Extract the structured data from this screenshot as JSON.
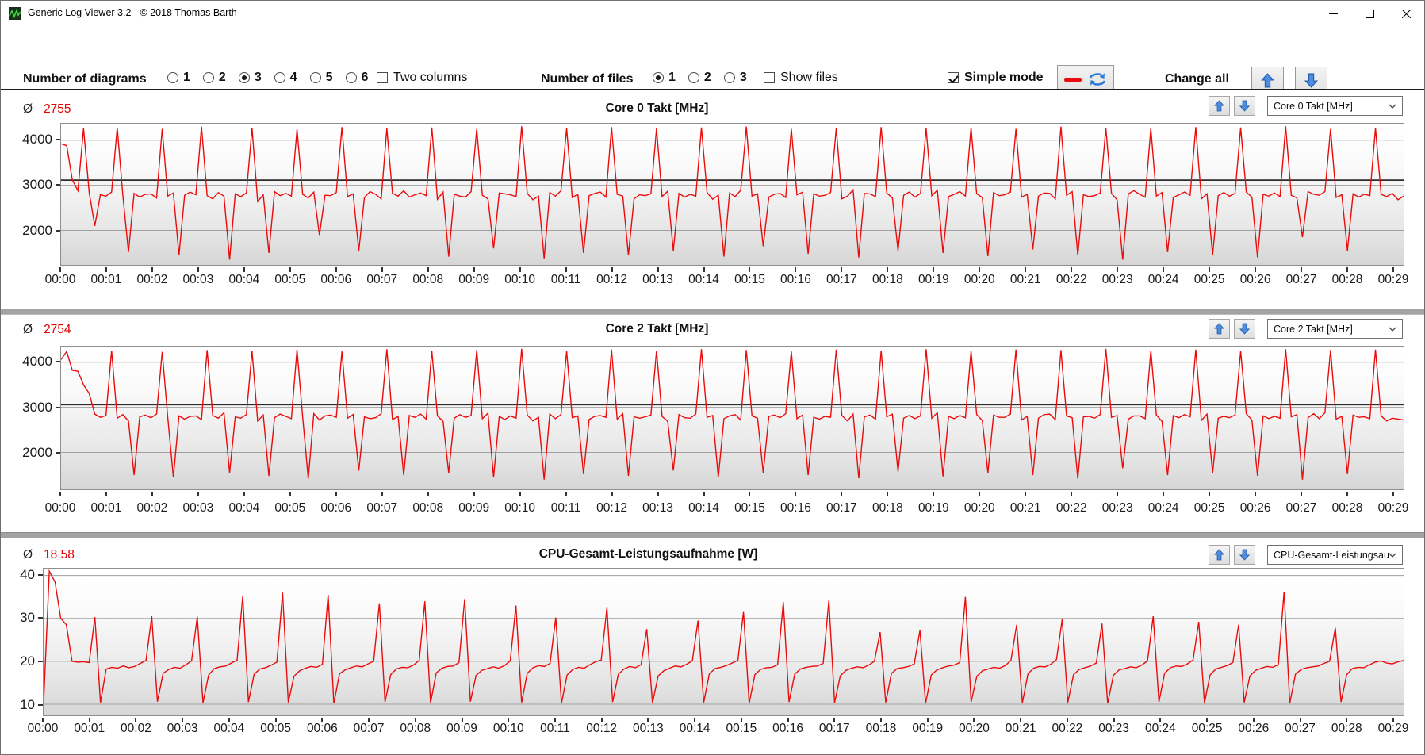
{
  "window_title": "Generic Log Viewer 3.2 - © 2018 Thomas Barth",
  "toolbar": {
    "diagrams_label": "Number of diagrams",
    "diagram_options": [
      "1",
      "2",
      "3",
      "4",
      "5",
      "6"
    ],
    "diagram_selected": "3",
    "two_columns_label": "Two columns",
    "two_columns_checked": false,
    "files_label": "Number of files",
    "file_options": [
      "1",
      "2",
      "3"
    ],
    "file_selected": "1",
    "show_files_label": "Show files",
    "show_files_checked": false,
    "simple_mode_label": "Simple mode",
    "simple_mode_checked": true,
    "change_all_label": "Change all"
  },
  "colors": {
    "series_red": "#ea0b0b",
    "avg_red": "#e50000",
    "arrow_blue": "#4d8ce0",
    "grid_gray": "#9f9f9f"
  },
  "chart_data": [
    {
      "type": "line",
      "title": "Core 0 Takt [MHz]",
      "avg_symbol": "Ø",
      "avg": "2755",
      "dropdown": "Core 0 Takt [MHz]",
      "line_color": "#ea0b0b",
      "ylim": [
        1235,
        4365
      ],
      "y_ticks": [
        {
          "v": 4000,
          "label": "4000"
        },
        {
          "v": 3000,
          "label": "3000"
        },
        {
          "v": 2000,
          "label": "2000"
        }
      ],
      "marker_line": 3115,
      "x_ticks": [
        "00:00",
        "00:01",
        "00:02",
        "00:03",
        "00:04",
        "00:05",
        "00:06",
        "00:07",
        "00:08",
        "00:09",
        "00:10",
        "00:11",
        "00:12",
        "00:13",
        "00:14",
        "00:15",
        "00:16",
        "00:17",
        "00:18",
        "00:19",
        "00:20",
        "00:21",
        "00:22",
        "00:23",
        "00:24",
        "00:25",
        "00:26",
        "00:27",
        "00:28",
        "00:29"
      ],
      "values": [
        3920,
        3880,
        3120,
        2880,
        4260,
        2840,
        2100,
        2790,
        2760,
        2850,
        4280,
        2780,
        1520,
        2820,
        2740,
        2800,
        2810,
        2720,
        4250,
        2760,
        2830,
        1450,
        2780,
        2850,
        2790,
        4300,
        2770,
        2700,
        2840,
        2760,
        1350,
        2810,
        2750,
        2830,
        4270,
        2640,
        2790,
        1500,
        2860,
        2770,
        2820,
        2760,
        4240,
        2800,
        2720,
        2850,
        1900,
        2780,
        2770,
        2840,
        4290,
        2750,
        2810,
        1550,
        2730,
        2860,
        2800,
        2700,
        4260,
        2820,
        2760,
        2880,
        2740,
        2790,
        2830,
        2770,
        4280,
        2690,
        2850,
        1420,
        2800,
        2760,
        2740,
        2860,
        4250,
        2780,
        2700,
        1600,
        2830,
        2810,
        2790,
        2750,
        4310,
        2820,
        2680,
        2760,
        1380,
        2840,
        2760,
        2880,
        4270,
        2730,
        2800,
        1500,
        2770,
        2820,
        2850,
        2740,
        4290,
        2800,
        2760,
        1450,
        2700,
        2790,
        2770,
        2810,
        4260,
        2750,
        2870,
        1550,
        2820,
        2740,
        2800,
        2760,
        4280,
        2840,
        2690,
        2780,
        1420,
        2830,
        2750,
        2890,
        4300,
        2760,
        2810,
        1650,
        2740,
        2800,
        2820,
        2730,
        4250,
        2790,
        2850,
        1480,
        2810,
        2760,
        2780,
        2840,
        4270,
        2700,
        2760,
        2900,
        1400,
        2820,
        2810,
        2750,
        4290,
        2830,
        2720,
        1550,
        2780,
        2850,
        2740,
        2820,
        4260,
        2770,
        2890,
        1500,
        2750,
        2800,
        2860,
        2760,
        4280,
        2810,
        2730,
        1430,
        2840,
        2770,
        2790,
        2850,
        4250,
        2740,
        2800,
        1580,
        2760,
        2830,
        2820,
        2700,
        4300,
        2780,
        2860,
        1450,
        2790,
        2750,
        2770,
        2830,
        4270,
        2820,
        2680,
        1350,
        2810,
        2880,
        2800,
        2740,
        4260,
        2760,
        2840,
        1520,
        2730,
        2790,
        2850,
        2780,
        4290,
        2700,
        2810,
        1460,
        2770,
        2840,
        2760,
        2820,
        4280,
        2850,
        2740,
        1400,
        2800,
        2760,
        2830,
        2750,
        4310,
        2780,
        2720,
        1850,
        2860,
        2800,
        2780,
        2860,
        4250,
        2730,
        2790,
        1550,
        2810,
        2740,
        2800,
        2770,
        4270,
        2800,
        2750,
        2820,
        2680,
        2760
      ]
    },
    {
      "type": "line",
      "title": "Core 2 Takt [MHz]",
      "avg_symbol": "Ø",
      "avg": "2754",
      "dropdown": "Core 2 Takt [MHz]",
      "line_color": "#ea0b0b",
      "ylim": [
        1183,
        4348
      ],
      "y_ticks": [
        {
          "v": 4000,
          "label": "4000"
        },
        {
          "v": 3000,
          "label": "3000"
        },
        {
          "v": 2000,
          "label": "2000"
        }
      ],
      "marker_line": 3060,
      "x_ticks": [
        "00:00",
        "00:01",
        "00:02",
        "00:03",
        "00:04",
        "00:05",
        "00:06",
        "00:07",
        "00:08",
        "00:09",
        "00:10",
        "00:11",
        "00:12",
        "00:13",
        "00:14",
        "00:15",
        "00:16",
        "00:17",
        "00:18",
        "00:19",
        "00:20",
        "00:21",
        "00:22",
        "00:23",
        "00:24",
        "00:25",
        "00:26",
        "00:27",
        "00:28",
        "00:29"
      ],
      "values": [
        4060,
        4240,
        3820,
        3800,
        3500,
        3310,
        2850,
        2780,
        2820,
        4260,
        2760,
        2840,
        2700,
        1500,
        2790,
        2830,
        2770,
        2850,
        4230,
        2780,
        1450,
        2810,
        2740,
        2800,
        2810,
        2730,
        4270,
        2820,
        2760,
        2880,
        1550,
        2790,
        2760,
        2840,
        4250,
        2700,
        2830,
        1480,
        2770,
        2850,
        2800,
        2750,
        4280,
        2790,
        1420,
        2860,
        2720,
        2810,
        2830,
        2780,
        4240,
        2760,
        2840,
        1600,
        2790,
        2750,
        2770,
        2860,
        4290,
        2730,
        2800,
        1500,
        2820,
        2780,
        2850,
        2740,
        4260,
        2810,
        2690,
        1550,
        2760,
        2840,
        2780,
        2820,
        4270,
        2750,
        2870,
        1450,
        2800,
        2730,
        2810,
        2760,
        4300,
        2830,
        2700,
        2780,
        1400,
        2850,
        2750,
        2840,
        4250,
        2770,
        2810,
        1520,
        2730,
        2800,
        2820,
        2780,
        4280,
        2740,
        2860,
        1480,
        2790,
        2760,
        2790,
        2830,
        4260,
        2800,
        2690,
        1600,
        2840,
        2770,
        2760,
        2850,
        4290,
        2780,
        2820,
        1450,
        2750,
        2810,
        2840,
        2720,
        4270,
        2810,
        2760,
        1550,
        2800,
        2830,
        2770,
        2860,
        4240,
        2750,
        2830,
        1500,
        2780,
        2740,
        2800,
        2780,
        4280,
        2820,
        2700,
        2850,
        1430,
        2790,
        2830,
        2740,
        4260,
        2790,
        2850,
        1580,
        2760,
        2820,
        2750,
        2810,
        4290,
        2760,
        2880,
        1470,
        2800,
        2750,
        2820,
        2770,
        4250,
        2840,
        2710,
        1550,
        2830,
        2780,
        2780,
        2850,
        4280,
        2720,
        2800,
        1500,
        2760,
        2840,
        2850,
        2730,
        4270,
        2810,
        2770,
        1420,
        2790,
        2800,
        2760,
        2840,
        4300,
        2780,
        2820,
        1650,
        2740,
        2810,
        2810,
        2750,
        4260,
        2830,
        2690,
        1500,
        2820,
        2770,
        2840,
        2790,
        4280,
        2710,
        2850,
        1550,
        2760,
        2800,
        2770,
        2830,
        4250,
        2860,
        2720,
        1480,
        2810,
        2750,
        2800,
        2760,
        4290,
        2790,
        2840,
        1400,
        2770,
        2860,
        2750,
        2880,
        4270,
        2740,
        2800,
        1520,
        2830,
        2780,
        2790,
        2750,
        4280,
        2810,
        2700,
        2760,
        2740,
        2720
      ]
    },
    {
      "type": "line",
      "title": "CPU-Gesamt-Leistungsaufnahme [W]",
      "avg_symbol": "Ø",
      "avg": "18,58",
      "dropdown": "CPU-Gesamt-Leistungsau",
      "line_color": "#ea0b0b",
      "ylim": [
        7.4,
        41.6
      ],
      "y_ticks": [
        {
          "v": 40,
          "label": "40"
        },
        {
          "v": 30,
          "label": "30"
        },
        {
          "v": 20,
          "label": "20"
        },
        {
          "v": 10,
          "label": "10"
        }
      ],
      "marker_line": null,
      "x_ticks": [
        "00:00",
        "00:01",
        "00:02",
        "00:03",
        "00:04",
        "00:05",
        "00:06",
        "00:07",
        "00:08",
        "00:09",
        "00:10",
        "00:11",
        "00:12",
        "00:13",
        "00:14",
        "00:15",
        "00:16",
        "00:17",
        "00:18",
        "00:19",
        "00:20",
        "00:21",
        "00:22",
        "00:23",
        "00:24",
        "00:25",
        "00:26",
        "00:27",
        "00:28",
        "00:29"
      ],
      "values": [
        10.2,
        41,
        38.5,
        30,
        28.5,
        20,
        19.8,
        19.9,
        19.7,
        30.3,
        10.4,
        18.2,
        18.6,
        18.4,
        18.9,
        18.5,
        18.8,
        19.5,
        20.2,
        30.5,
        10.6,
        17.2,
        18.1,
        18.6,
        18.4,
        19.2,
        20.1,
        30.4,
        10.3,
        16.8,
        18.3,
        18.7,
        18.9,
        19.6,
        20.3,
        35.2,
        10.5,
        17,
        18.2,
        18.5,
        19.1,
        19.8,
        36,
        10.4,
        16.5,
        17.8,
        18.4,
        18.8,
        18.6,
        19.3,
        35.5,
        10.2,
        17.1,
        18,
        18.5,
        18.9,
        18.7,
        19.4,
        20,
        33.5,
        10.5,
        16.9,
        18.2,
        18.6,
        18.5,
        19.1,
        20.2,
        34,
        10.3,
        17.3,
        18.4,
        18.8,
        18.9,
        19.7,
        34.5,
        10.6,
        16.7,
        17.9,
        18.3,
        18.7,
        18.4,
        19,
        20.1,
        33,
        10.4,
        17.2,
        18.5,
        19,
        18.8,
        19.5,
        30.2,
        10.2,
        16.8,
        18.1,
        18.6,
        18.4,
        19.2,
        19.9,
        20.3,
        32.5,
        10.5,
        17,
        18.2,
        18.8,
        18.5,
        19.2,
        27.5,
        10.3,
        16.6,
        17.8,
        18.4,
        18.9,
        18.7,
        19.3,
        20.1,
        29.5,
        10.4,
        17.1,
        18.3,
        18.6,
        19,
        19.6,
        20.2,
        31.5,
        10.2,
        16.9,
        18.1,
        18.5,
        18.6,
        19.2,
        33.8,
        10.5,
        17,
        18.2,
        18.6,
        18.8,
        18.9,
        19.5,
        34.2,
        10.3,
        16.6,
        17.9,
        18.4,
        18.7,
        18.5,
        19.1,
        20,
        26.8,
        10.4,
        17.2,
        18.3,
        18.5,
        18.8,
        19.4,
        27.2,
        10.2,
        16.8,
        18,
        18.5,
        18.9,
        19.1,
        19.7,
        35,
        10.5,
        16.5,
        17.8,
        18.2,
        18.6,
        18.4,
        19,
        20.2,
        28.5,
        10.3,
        17.1,
        18.4,
        18.8,
        18.7,
        19.3,
        20.4,
        29.8,
        10.4,
        16.9,
        18.1,
        18.5,
        18.9,
        19.6,
        28.8,
        10.2,
        16.7,
        18,
        18.3,
        18.7,
        18.5,
        19.1,
        20.1,
        30.5,
        10.5,
        17.2,
        18.5,
        18.9,
        18.8,
        19.4,
        20.3,
        29.2,
        10.3,
        16.8,
        18.2,
        18.6,
        19,
        19.7,
        28.5,
        10.4,
        16.6,
        17.9,
        18.4,
        18.8,
        18.6,
        19.2,
        36.2,
        10.2,
        17,
        18.1,
        18.5,
        18.7,
        18.9,
        19.5,
        20,
        27.8,
        10.5,
        16.9,
        18.3,
        18.6,
        18.5,
        19.2,
        19.8,
        20.1,
        19.6,
        19.4,
        19.9,
        20.2
      ]
    }
  ]
}
